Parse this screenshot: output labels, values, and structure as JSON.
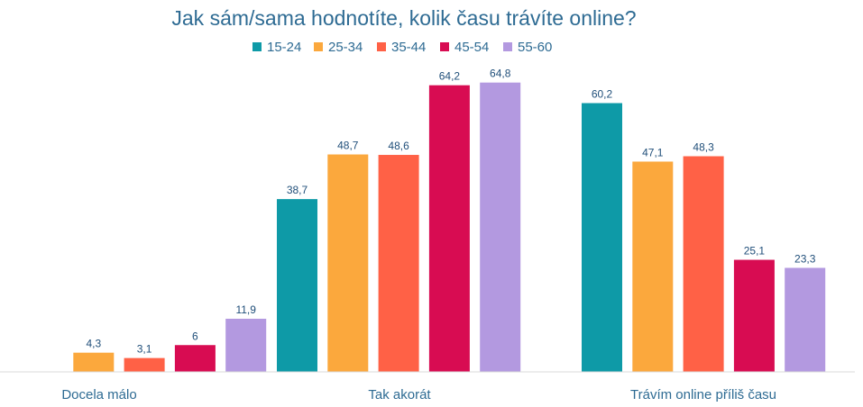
{
  "chart_data": {
    "type": "bar",
    "title": "Jak sám/sama hodnotíte, kolik času trávíte online?",
    "categories": [
      "Docela málo",
      "Tak akorát",
      "Trávím online příliš času"
    ],
    "series": [
      {
        "name": "15-24",
        "color": "#0e9aa7",
        "values": [
          null,
          38.7,
          60.2
        ]
      },
      {
        "name": "25-34",
        "color": "#fba83d",
        "values": [
          4.3,
          48.7,
          47.1
        ]
      },
      {
        "name": "35-44",
        "color": "#ff6146",
        "values": [
          3.1,
          48.6,
          48.3
        ]
      },
      {
        "name": "45-54",
        "color": "#d80c52",
        "values": [
          6,
          64.2,
          25.1
        ]
      },
      {
        "name": "55-60",
        "color": "#b399e0",
        "values": [
          11.9,
          64.8,
          23.3
        ]
      }
    ],
    "data_labels": [
      [
        "",
        "38,7",
        "60,2"
      ],
      [
        "4,3",
        "48,7",
        "47,1"
      ],
      [
        "3,1",
        "48,6",
        "48,3"
      ],
      [
        "6",
        "64,2",
        "25,1"
      ],
      [
        "11,9",
        "64,8",
        "23,3"
      ]
    ],
    "ylim": [
      0,
      72
    ],
    "legend_position": "top",
    "grid": false,
    "xlabel": "",
    "ylabel": ""
  }
}
